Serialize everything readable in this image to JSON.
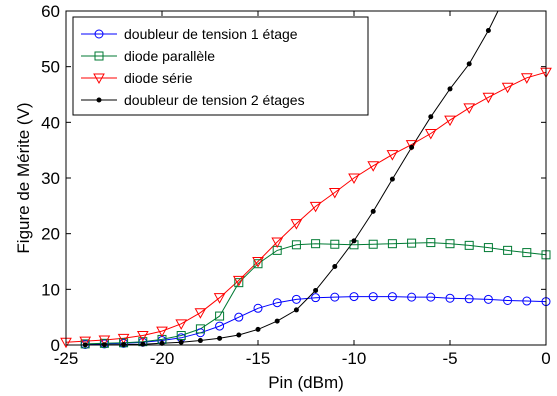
{
  "chart_data": {
    "type": "line",
    "xlabel": "Pin (dBm)",
    "ylabel": "Figure de Mérite (V)",
    "xlim": [
      -25,
      0
    ],
    "ylim": [
      0,
      60
    ],
    "xticks": [
      -25,
      -20,
      -15,
      -10,
      -5,
      0
    ],
    "yticks": [
      0,
      10,
      20,
      30,
      40,
      50,
      60
    ],
    "grid": false,
    "legend_position": "top-left",
    "series": [
      {
        "name": "doubleur de tension 1 étage",
        "color": "#0000ff",
        "marker": "circle",
        "x": [
          -24,
          -23,
          -22,
          -21,
          -20,
          -19,
          -18,
          -17,
          -16,
          -15,
          -14,
          -13,
          -12,
          -11,
          -10,
          -9,
          -8,
          -7,
          -6,
          -5,
          -4,
          -3,
          -2,
          -1,
          0
        ],
        "y": [
          0.1,
          0.2,
          0.3,
          0.5,
          0.8,
          1.3,
          2.2,
          3.4,
          5.0,
          6.6,
          7.6,
          8.2,
          8.5,
          8.6,
          8.7,
          8.7,
          8.7,
          8.6,
          8.6,
          8.4,
          8.3,
          8.2,
          8.0,
          7.9,
          7.8
        ]
      },
      {
        "name": "diode parallèle",
        "color": "#007a33",
        "marker": "square",
        "x": [
          -24,
          -23,
          -22,
          -21,
          -20,
          -19,
          -18,
          -17,
          -16,
          -15,
          -14,
          -13,
          -12,
          -11,
          -10,
          -9,
          -8,
          -7,
          -6,
          -5,
          -4,
          -3,
          -2,
          -1,
          0
        ],
        "y": [
          0.2,
          0.3,
          0.4,
          0.6,
          1.0,
          1.7,
          2.9,
          5.2,
          11.2,
          14.6,
          17.0,
          18.0,
          18.2,
          18.1,
          18.0,
          18.1,
          18.2,
          18.3,
          18.4,
          18.2,
          17.9,
          17.5,
          17.0,
          16.6,
          16.2
        ]
      },
      {
        "name": "diode série",
        "color": "#ff0000",
        "marker": "triangle-down",
        "x": [
          -25,
          -24,
          -23,
          -22,
          -21,
          -20,
          -19,
          -18,
          -17,
          -16,
          -15,
          -14,
          -13,
          -12,
          -11,
          -10,
          -9,
          -8,
          -7,
          -6,
          -5,
          -4,
          -3,
          -2,
          -1,
          0
        ],
        "y": [
          0.5,
          0.7,
          0.9,
          1.2,
          1.7,
          2.5,
          3.8,
          5.8,
          8.5,
          11.6,
          15.0,
          18.5,
          21.8,
          24.9,
          27.4,
          30.0,
          32.2,
          34.2,
          36.0,
          38.0,
          40.4,
          42.6,
          44.5,
          46.3,
          48.0,
          49.0
        ]
      },
      {
        "name": "doubleur de tension 2 étages",
        "color": "#000000",
        "marker": "dot",
        "x": [
          -24,
          -23,
          -22,
          -21,
          -20,
          -19,
          -18,
          -17,
          -16,
          -15,
          -14,
          -13,
          -12,
          -11,
          -10,
          -9,
          -8,
          -7,
          -6,
          -5,
          -4,
          -3
        ],
        "y": [
          0.02,
          0.05,
          0.08,
          0.15,
          0.3,
          0.5,
          0.8,
          1.2,
          1.8,
          2.8,
          4.3,
          6.3,
          9.8,
          14.1,
          18.7,
          24.0,
          29.8,
          35.5,
          41.0,
          46.0,
          50.5,
          56.5
        ],
        "line_x": [
          -24,
          -23,
          -22,
          -21,
          -20,
          -19,
          -18,
          -17,
          -16,
          -15,
          -14,
          -13,
          -12,
          -11,
          -10,
          -9,
          -8,
          -7,
          -6,
          -5,
          -4,
          -3,
          -2.5
        ],
        "line_y": [
          0.02,
          0.05,
          0.08,
          0.15,
          0.3,
          0.5,
          0.8,
          1.2,
          1.8,
          2.8,
          4.3,
          6.3,
          9.8,
          14.1,
          18.7,
          24.0,
          29.8,
          35.5,
          41.0,
          46.0,
          50.5,
          56.5,
          60
        ]
      }
    ]
  }
}
